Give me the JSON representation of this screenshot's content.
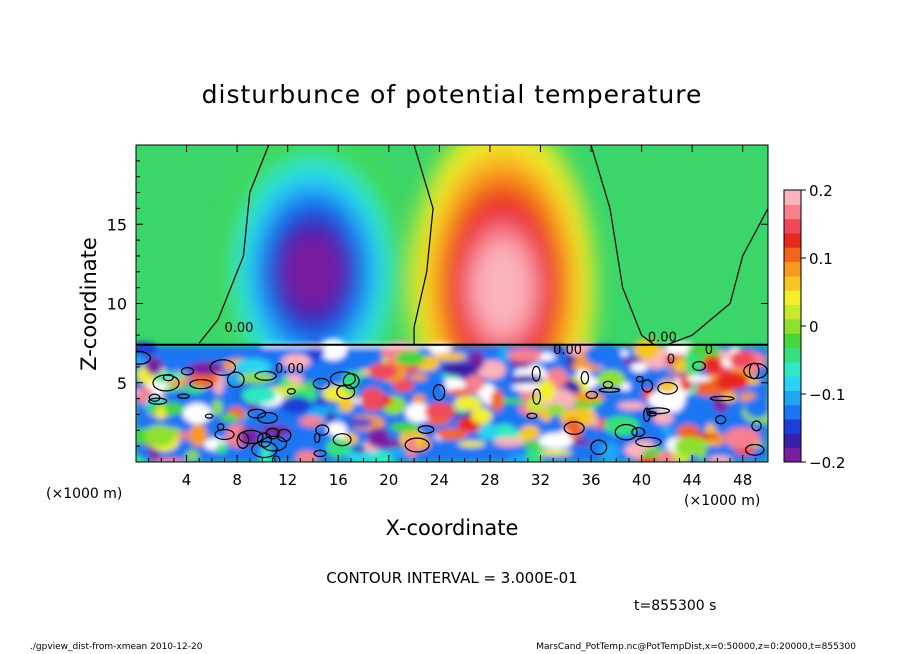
{
  "chart_data": {
    "type": "heatmap",
    "title": "disturbunce of potential temperature",
    "xlabel": "X-coordinate",
    "ylabel": "Z-coordinate",
    "x_unit_left": "(×1000 m)",
    "x_unit_right": "(×1000 m)",
    "xlim": [
      0,
      50
    ],
    "ylim": [
      0,
      20
    ],
    "x_ticks": [
      4,
      8,
      12,
      16,
      20,
      24,
      28,
      32,
      36,
      40,
      44,
      48
    ],
    "y_ticks": [
      5,
      10,
      15
    ],
    "colorbar": {
      "range": [
        -0.2,
        0.2
      ],
      "tick_values": [
        0.2,
        0.1,
        0,
        -0.1,
        -0.2
      ],
      "tick_labels": [
        "0.2",
        "0.1",
        "0",
        "−0.1",
        "−0.2"
      ],
      "colors": [
        "#7a1fa2",
        "#3b1fa8",
        "#1d3fd9",
        "#1f74f2",
        "#1fa6f5",
        "#2ad4f0",
        "#2fe8c4",
        "#35e07a",
        "#46d63a",
        "#8ee02f",
        "#c8e82a",
        "#f2ee2a",
        "#f7c524",
        "#f79a1f",
        "#f3651c",
        "#e8281f",
        "#f0485a",
        "#f7808f",
        "#fbb3bc"
      ]
    },
    "contour_labels": [
      "0.00",
      "0.00",
      "0.00",
      "0.00",
      "0",
      "0",
      "0"
    ],
    "annotation_interval": "CONTOUR INTERVAL = 3.000E-01",
    "annotation_time": "t=855300 s",
    "features": [
      {
        "sign": "negative",
        "x_center": 14,
        "z_center": 12,
        "x_width": 4.5,
        "z_width": 4.5,
        "peak": -0.2
      },
      {
        "sign": "positive",
        "x_center": 29,
        "z_center": 11,
        "x_width": 4.5,
        "z_width": 5.5,
        "peak": 0.2
      }
    ]
  },
  "footer": {
    "left": "./gpview_dist-from-xmean  2010-12-20",
    "right": "MarsCand_PotTemp.nc@PotTempDist,x=0:50000,z=0:20000,t=855300"
  },
  "colors": {
    "frame": "#000000",
    "background": "#ffffff"
  }
}
